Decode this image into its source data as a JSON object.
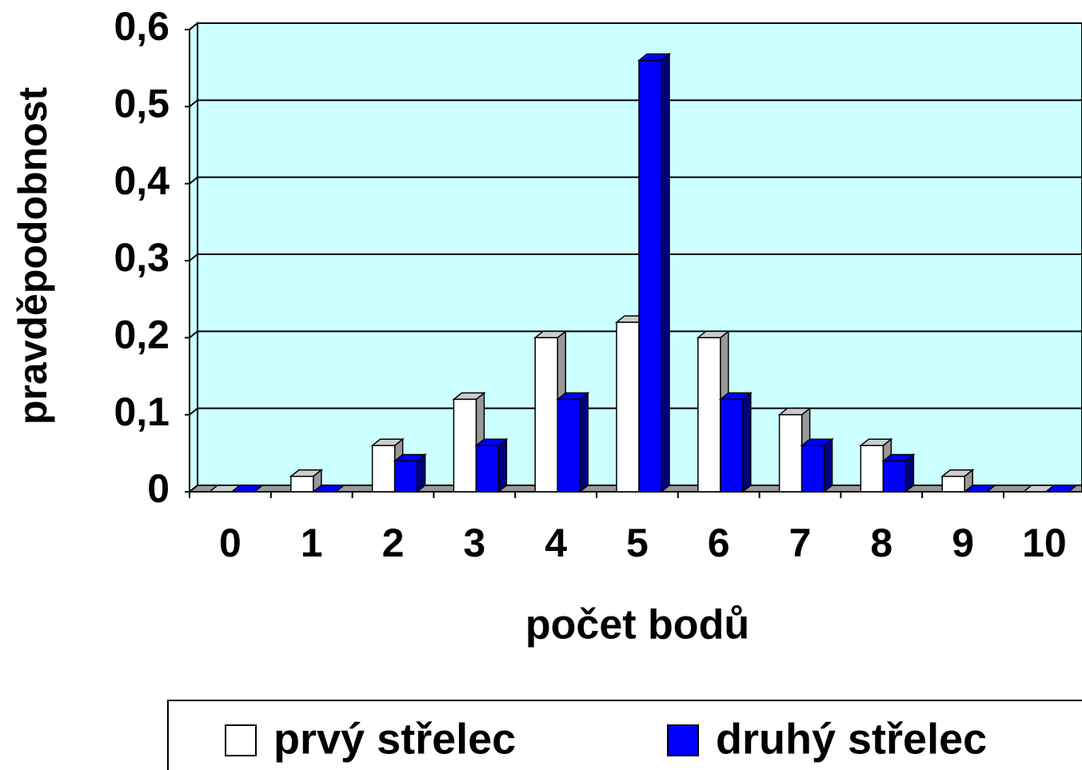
{
  "chart_data": {
    "type": "bar3d",
    "y_label": "pravděpodobnost",
    "x_label": "počet bodů",
    "categories": [
      "0",
      "1",
      "2",
      "3",
      "4",
      "5",
      "6",
      "7",
      "8",
      "9",
      "10"
    ],
    "series": [
      {
        "name": "prvý střelec",
        "color": "#ffffff",
        "values": [
          0,
          0.02,
          0.06,
          0.12,
          0.2,
          0.22,
          0.2,
          0.1,
          0.06,
          0.02,
          0
        ]
      },
      {
        "name": "druhý střelec",
        "color": "#0000ff",
        "values": [
          0,
          0,
          0.04,
          0.06,
          0.12,
          0.56,
          0.12,
          0.06,
          0.04,
          0,
          0
        ]
      }
    ],
    "ylim": [
      0,
      0.6
    ],
    "yticks": [
      0,
      {
        "value": 0.1,
        "label": "0,1"
      },
      {
        "value": 0.2,
        "label": "0,2"
      },
      {
        "value": 0.3,
        "label": "0,3"
      },
      {
        "value": 0.4,
        "label": "0,4"
      },
      {
        "value": 0.5,
        "label": "0,5"
      },
      {
        "value": 0.6,
        "label": "0,6"
      }
    ],
    "grid": true,
    "legend": "bottom"
  }
}
